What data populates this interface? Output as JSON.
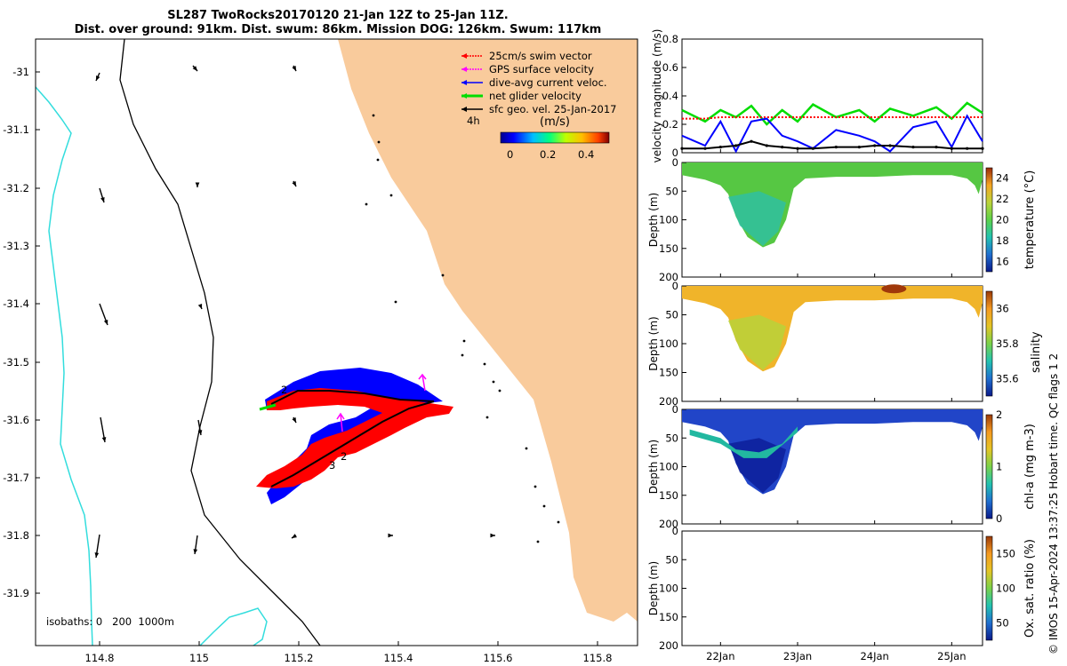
{
  "title": {
    "line1": "SL287 TwoRocks20170120 21-Jan 12Z to 25-Jan 11Z.",
    "line2": "Dist. over ground: 91km. Dist. swum: 86km. Mission DOG: 126km. Swum: 117km"
  },
  "map": {
    "lon_ticks": [
      "114.8",
      "115",
      "115.2",
      "115.4",
      "115.6",
      "115.8"
    ],
    "lat_ticks": [
      "-31",
      "-31.1",
      "-31.2",
      "-31.3",
      "-31.4",
      "-31.5",
      "-31.6",
      "-31.7",
      "-31.8",
      "-31.9"
    ],
    "legend": {
      "items": [
        {
          "label": "25cm/s swim vector",
          "color": "#ff0000"
        },
        {
          "label": "GPS surface velocity",
          "color": "#ff00ff"
        },
        {
          "label": "dive-avg current veloc.",
          "color": "#0000ff"
        },
        {
          "label": "net glider velocity",
          "color": "#00dd00"
        },
        {
          "label": "sfc geo. vel. 25-Jan-2017",
          "color": "#000000"
        }
      ],
      "time_label": "4h",
      "colorbar_unit": "(m/s)",
      "colorbar_ticks": [
        "0",
        "0.2",
        "0.4"
      ]
    },
    "isobaths_label": "isobaths: 0   200  1000m",
    "track_labels": [
      "2",
      "2",
      "3"
    ],
    "land_color": "#f9cb9c",
    "isobath_200_color": "#000000",
    "isobath_1000_color": "#33dddd"
  },
  "chart_data": [
    {
      "type": "line",
      "title": "",
      "ylabel": "velocity magnitude (m/s)",
      "ylim": [
        0,
        0.8
      ],
      "yticks": [
        "0",
        "0.2",
        "0.4",
        "0.6",
        "0.8"
      ],
      "x": [
        21.5,
        21.8,
        22.0,
        22.2,
        22.4,
        22.6,
        22.8,
        23.0,
        23.2,
        23.5,
        23.8,
        24.0,
        24.2,
        24.5,
        24.8,
        25.0,
        25.2,
        25.4
      ],
      "series": [
        {
          "name": "net glider velocity",
          "color": "#00dd00",
          "values": [
            0.3,
            0.22,
            0.3,
            0.25,
            0.33,
            0.2,
            0.3,
            0.22,
            0.34,
            0.25,
            0.3,
            0.22,
            0.31,
            0.26,
            0.32,
            0.24,
            0.35,
            0.28
          ]
        },
        {
          "name": "swim speed",
          "color": "#ff0000",
          "values": [
            0.24,
            0.24,
            0.25,
            0.25,
            0.25,
            0.25,
            0.25,
            0.25,
            0.25,
            0.25,
            0.25,
            0.25,
            0.25,
            0.25,
            0.25,
            0.25,
            0.25,
            0.25
          ]
        },
        {
          "name": "dive-avg current",
          "color": "#0000ff",
          "values": [
            0.12,
            0.05,
            0.22,
            0.01,
            0.22,
            0.24,
            0.12,
            0.08,
            0.03,
            0.16,
            0.12,
            0.08,
            0.01,
            0.18,
            0.22,
            0.04,
            0.26,
            0.08
          ]
        },
        {
          "name": "surface geostrophic",
          "color": "#000000",
          "values": [
            0.03,
            0.03,
            0.04,
            0.05,
            0.08,
            0.05,
            0.04,
            0.03,
            0.03,
            0.04,
            0.04,
            0.05,
            0.05,
            0.04,
            0.04,
            0.03,
            0.03,
            0.03
          ]
        }
      ]
    },
    {
      "type": "heatmap",
      "variable": "temperature",
      "colorbar_label": "temperature (°C)",
      "clim": [
        15,
        25
      ],
      "colorbar_ticks": [
        "16",
        "18",
        "20",
        "22",
        "24"
      ],
      "ylabel": "Depth (m)",
      "ylim": [
        200,
        0
      ],
      "yticks": [
        "0",
        "50",
        "100",
        "150",
        "200"
      ]
    },
    {
      "type": "heatmap",
      "variable": "salinity",
      "colorbar_label": "salinity",
      "clim": [
        35.5,
        36.1
      ],
      "colorbar_ticks": [
        "35.6",
        "35.8",
        "36"
      ],
      "ylabel": "Depth (m)",
      "ylim": [
        200,
        0
      ],
      "yticks": [
        "0",
        "50",
        "100",
        "150",
        "200"
      ]
    },
    {
      "type": "heatmap",
      "variable": "chl-a",
      "colorbar_label": "chl-a (mg m-3)",
      "clim": [
        0,
        2
      ],
      "colorbar_ticks": [
        "0",
        "1",
        "2"
      ],
      "ylabel": "Depth (m)",
      "ylim": [
        200,
        0
      ],
      "yticks": [
        "0",
        "50",
        "100",
        "150",
        "200"
      ]
    },
    {
      "type": "heatmap",
      "variable": "oxygen saturation",
      "colorbar_label": "Ox. sat. ratio (%)",
      "clim": [
        25,
        175
      ],
      "colorbar_ticks": [
        "50",
        "100",
        "150"
      ],
      "ylabel": "Depth (m)",
      "ylim": [
        200,
        0
      ],
      "yticks": [
        "0",
        "50",
        "100",
        "150",
        "200"
      ],
      "xticks": [
        "22Jan",
        "23Jan",
        "24Jan",
        "25Jan"
      ]
    }
  ],
  "extra": {
    "salinity_side_label": "salinity",
    "credit": "© IMOS 15-Apr-2024 13:37:25 Hobart time. QC flags 1  2"
  }
}
